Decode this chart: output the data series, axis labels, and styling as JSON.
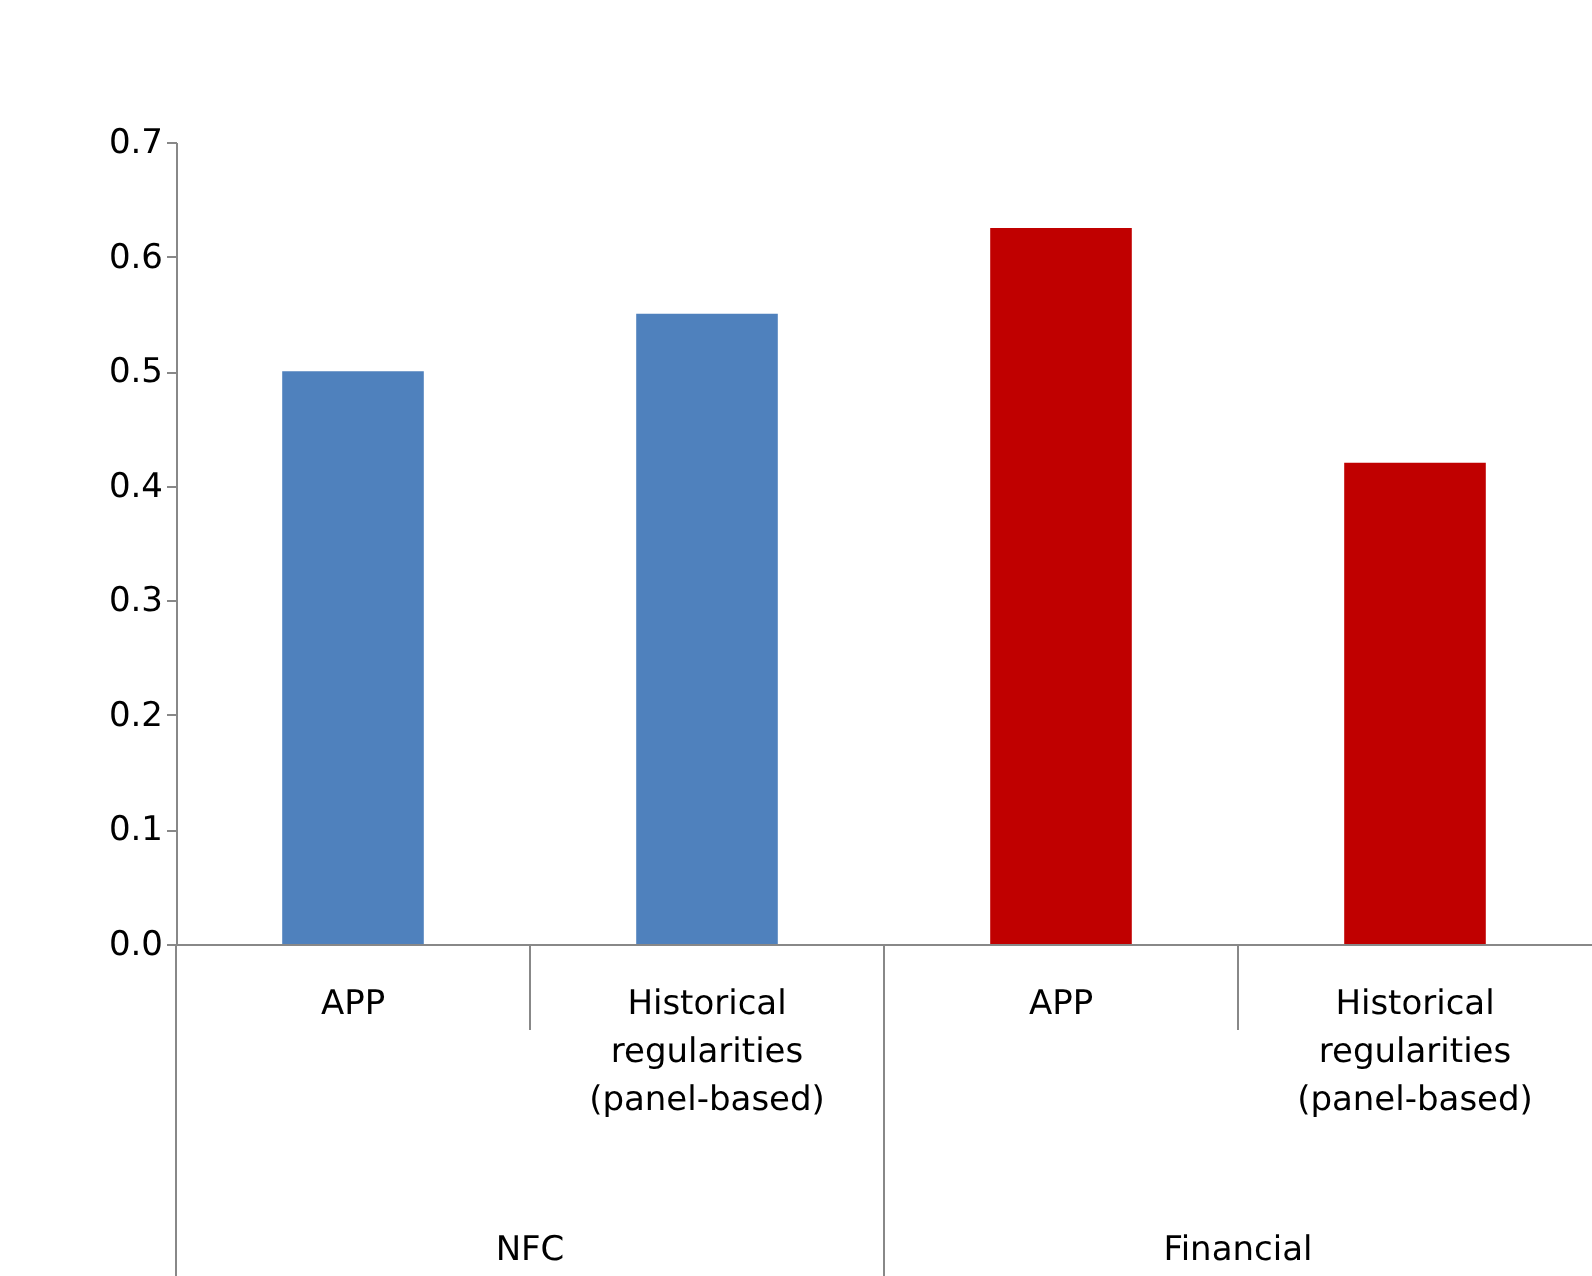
{
  "chart_data": {
    "type": "bar",
    "categories": [
      "APP",
      "Historical regularities (panel-based)",
      "APP",
      "Historical regularities (panel-based)"
    ],
    "values": [
      0.5,
      0.55,
      0.625,
      0.42
    ],
    "colors": [
      "#4f81bd",
      "#4f81bd",
      "#c00000",
      "#c00000"
    ],
    "ylim": [
      0,
      0.7
    ],
    "yticks": [
      {
        "value": 0,
        "label": "0.0"
      },
      0.1,
      0.2,
      0.3,
      0.4,
      0.5,
      0.6,
      0.7
    ],
    "annotations": [
      "NFC",
      "Financial"
    ]
  }
}
